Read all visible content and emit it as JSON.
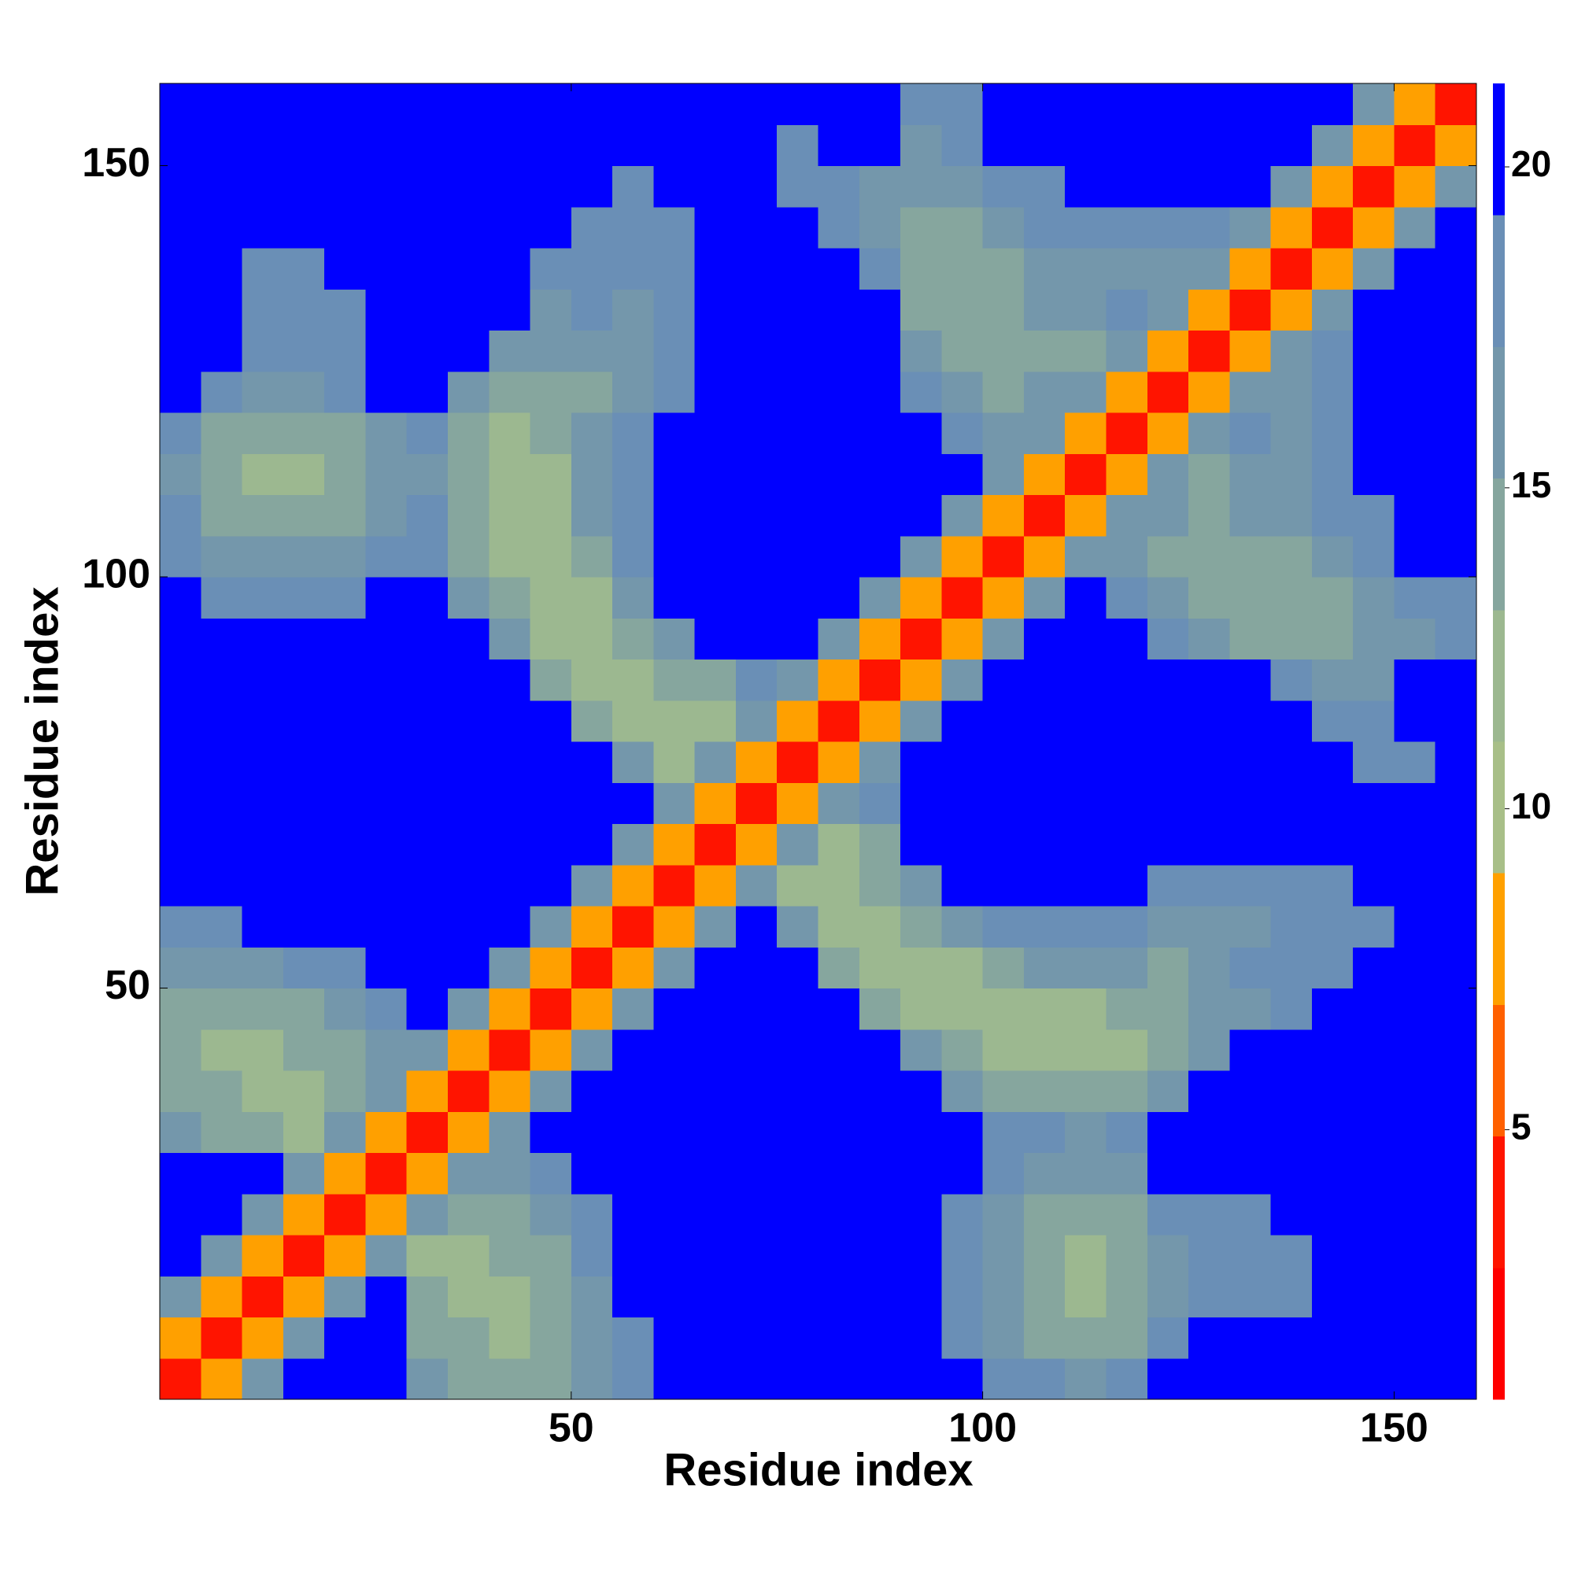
{
  "chart_data": {
    "type": "heatmap",
    "xlabel": "Residue index",
    "ylabel": "Residue index",
    "xlim": [
      0,
      160
    ],
    "ylim": [
      0,
      160
    ],
    "xticks": [
      50,
      100,
      150
    ],
    "yticks": [
      50,
      100,
      150
    ],
    "xbins": [
      0,
      5,
      10,
      15,
      20,
      25,
      30,
      35,
      40,
      45,
      50,
      55,
      60,
      65,
      70,
      75,
      80,
      85,
      90,
      95,
      100,
      105,
      110,
      115,
      120,
      125,
      130,
      135,
      140,
      145,
      150,
      155,
      160
    ],
    "ybins": [
      0,
      5,
      10,
      15,
      20,
      25,
      30,
      35,
      40,
      45,
      50,
      55,
      60,
      65,
      70,
      75,
      80,
      85,
      90,
      95,
      100,
      105,
      110,
      115,
      120,
      125,
      130,
      135,
      140,
      145,
      150,
      155,
      160
    ],
    "clim": [
      0.8,
      21.3
    ],
    "cticks": [
      5,
      10,
      15,
      20
    ],
    "colorscale": [
      "#ff0000",
      "#ff1400",
      "#ff6000",
      "#ffa000",
      "#a8bf88",
      "#9cb890",
      "#86a69e",
      "#7497ab",
      "#6a8fb6",
      "#0000ff"
    ],
    "z": [
      [
        3,
        9,
        16,
        21,
        21,
        21,
        17,
        15,
        14,
        15,
        17,
        19,
        21,
        21,
        21,
        21,
        21,
        21,
        21,
        21,
        19,
        18,
        17,
        19,
        21,
        21,
        21,
        21,
        21,
        21,
        21,
        21
      ],
      [
        9,
        3,
        9,
        16,
        21,
        21,
        15,
        14,
        13,
        14,
        16,
        19,
        21,
        21,
        21,
        21,
        21,
        21,
        21,
        19,
        17,
        15,
        14,
        15,
        18,
        21,
        21,
        21,
        21,
        21,
        21,
        21
      ],
      [
        16,
        9,
        3,
        9,
        16,
        21,
        14,
        13,
        13,
        14,
        17,
        20,
        21,
        21,
        21,
        21,
        21,
        21,
        20,
        18,
        16,
        14,
        13,
        14,
        17,
        19,
        18,
        19,
        20,
        21,
        21,
        21
      ],
      [
        21,
        16,
        9,
        3,
        9,
        16,
        13,
        13,
        14,
        15,
        18,
        20,
        21,
        21,
        21,
        21,
        21,
        21,
        20,
        18,
        16,
        14,
        13,
        14,
        17,
        18,
        18,
        19,
        20,
        21,
        21,
        21
      ],
      [
        21,
        21,
        16,
        9,
        3,
        9,
        16,
        14,
        15,
        17,
        19,
        21,
        21,
        21,
        21,
        21,
        21,
        21,
        21,
        19,
        17,
        15,
        14,
        15,
        18,
        19,
        19,
        20,
        21,
        21,
        21,
        21
      ],
      [
        21,
        21,
        21,
        16,
        9,
        3,
        9,
        16,
        16,
        19,
        21,
        21,
        21,
        21,
        21,
        21,
        21,
        21,
        21,
        21,
        19,
        17,
        16,
        17,
        21,
        21,
        21,
        21,
        21,
        21,
        21,
        21
      ],
      [
        17,
        15,
        14,
        13,
        16,
        9,
        3,
        9,
        16,
        21,
        21,
        21,
        21,
        21,
        21,
        21,
        21,
        21,
        21,
        21,
        19,
        19,
        17,
        18,
        21,
        21,
        21,
        21,
        21,
        21,
        21,
        21
      ],
      [
        15,
        14,
        13,
        13,
        14,
        16,
        9,
        3,
        9,
        16,
        21,
        21,
        21,
        21,
        21,
        21,
        21,
        21,
        21,
        17,
        15,
        14,
        14,
        15,
        17,
        21,
        21,
        21,
        21,
        21,
        21,
        21
      ],
      [
        14,
        13,
        13,
        14,
        15,
        16,
        16,
        9,
        3,
        9,
        16,
        21,
        21,
        21,
        21,
        21,
        21,
        21,
        16,
        14,
        13,
        12,
        12,
        13,
        14,
        16,
        21,
        21,
        21,
        21,
        21,
        21
      ],
      [
        15,
        14,
        14,
        15,
        17,
        19,
        21,
        16,
        9,
        3,
        9,
        16,
        21,
        21,
        21,
        21,
        21,
        15,
        13,
        12,
        12,
        13,
        13,
        14,
        15,
        16,
        17,
        18,
        21,
        21,
        21,
        21
      ],
      [
        17,
        16,
        17,
        18,
        19,
        21,
        21,
        21,
        16,
        9,
        3,
        9,
        16,
        21,
        21,
        21,
        15,
        12,
        12,
        13,
        15,
        16,
        16,
        17,
        15,
        16,
        18,
        18,
        19,
        20,
        21,
        21
      ],
      [
        19,
        19,
        20,
        20,
        21,
        21,
        21,
        21,
        21,
        16,
        9,
        3,
        9,
        16,
        21,
        16,
        12,
        12,
        14,
        16,
        19,
        19,
        19,
        19,
        16,
        17,
        17,
        18,
        19,
        19,
        20,
        21
      ],
      [
        21,
        21,
        21,
        21,
        21,
        21,
        21,
        21,
        21,
        21,
        16,
        9,
        3,
        9,
        16,
        13,
        13,
        14,
        17,
        21,
        21,
        21,
        21,
        21,
        18,
        18,
        19,
        18,
        19,
        20,
        21,
        21
      ],
      [
        21,
        21,
        21,
        21,
        21,
        21,
        21,
        21,
        21,
        21,
        21,
        16,
        9,
        3,
        9,
        16,
        12,
        15,
        21,
        21,
        21,
        21,
        21,
        21,
        21,
        21,
        21,
        21,
        21,
        21,
        21,
        21
      ],
      [
        21,
        21,
        21,
        21,
        21,
        21,
        21,
        21,
        21,
        21,
        21,
        21,
        16,
        9,
        3,
        9,
        16,
        18,
        21,
        21,
        21,
        21,
        21,
        21,
        21,
        21,
        21,
        21,
        21,
        21,
        21,
        21
      ],
      [
        21,
        21,
        21,
        21,
        21,
        21,
        21,
        21,
        21,
        21,
        21,
        16,
        13,
        16,
        9,
        3,
        9,
        16,
        21,
        21,
        21,
        21,
        21,
        21,
        21,
        21,
        21,
        21,
        21,
        19,
        19,
        21
      ],
      [
        21,
        21,
        21,
        21,
        21,
        21,
        21,
        21,
        21,
        21,
        15,
        12,
        13,
        12,
        16,
        9,
        3,
        9,
        16,
        21,
        21,
        21,
        21,
        21,
        21,
        21,
        21,
        21,
        19,
        18,
        20,
        21
      ],
      [
        21,
        21,
        21,
        21,
        21,
        21,
        21,
        21,
        21,
        15,
        12,
        12,
        14,
        15,
        18,
        16,
        9,
        3,
        9,
        16,
        21,
        21,
        21,
        21,
        21,
        21,
        21,
        18,
        17,
        17,
        20,
        21
      ],
      [
        21,
        21,
        20,
        20,
        21,
        21,
        21,
        21,
        16,
        13,
        12,
        14,
        17,
        21,
        21,
        21,
        16,
        9,
        3,
        9,
        16,
        21,
        21,
        21,
        18,
        16,
        15,
        14,
        15,
        16,
        17,
        19
      ],
      [
        21,
        19,
        18,
        18,
        19,
        21,
        21,
        17,
        14,
        12,
        13,
        16,
        21,
        21,
        21,
        21,
        21,
        16,
        9,
        3,
        9,
        16,
        21,
        19,
        16,
        15,
        14,
        14,
        15,
        17,
        18,
        19
      ],
      [
        19,
        17,
        16,
        16,
        17,
        19,
        19,
        15,
        13,
        12,
        15,
        19,
        21,
        21,
        21,
        21,
        21,
        21,
        16,
        9,
        3,
        9,
        16,
        17,
        15,
        15,
        15,
        15,
        17,
        19,
        20,
        21
      ],
      [
        18,
        15,
        14,
        14,
        15,
        17,
        19,
        14,
        12,
        13,
        16,
        19,
        21,
        21,
        21,
        21,
        21,
        21,
        21,
        16,
        9,
        3,
        9,
        16,
        16,
        14,
        16,
        16,
        18,
        19,
        21,
        21
      ],
      [
        17,
        14,
        13,
        13,
        14,
        16,
        17,
        14,
        12,
        13,
        16,
        19,
        21,
        21,
        21,
        21,
        21,
        21,
        21,
        21,
        16,
        9,
        3,
        9,
        16,
        14,
        17,
        17,
        18,
        20,
        21,
        21
      ],
      [
        19,
        15,
        14,
        14,
        15,
        17,
        18,
        15,
        13,
        14,
        17,
        19,
        21,
        21,
        21,
        21,
        21,
        21,
        21,
        19,
        17,
        16,
        9,
        3,
        9,
        16,
        18,
        17,
        18,
        21,
        21,
        21
      ],
      [
        21,
        18,
        17,
        17,
        18,
        21,
        21,
        17,
        14,
        15,
        15,
        16,
        18,
        21,
        21,
        21,
        21,
        21,
        18,
        16,
        15,
        16,
        16,
        9,
        3,
        9,
        16,
        17,
        19,
        21,
        21,
        21
      ],
      [
        21,
        21,
        19,
        18,
        19,
        21,
        21,
        21,
        16,
        16,
        16,
        17,
        18,
        21,
        21,
        21,
        21,
        21,
        16,
        15,
        15,
        14,
        14,
        16,
        9,
        3,
        9,
        16,
        19,
        21,
        21,
        21
      ],
      [
        21,
        21,
        18,
        18,
        19,
        21,
        21,
        21,
        21,
        17,
        18,
        17,
        19,
        21,
        21,
        21,
        21,
        21,
        15,
        14,
        15,
        16,
        17,
        18,
        16,
        9,
        3,
        9,
        16,
        21,
        21,
        21
      ],
      [
        21,
        21,
        19,
        19,
        20,
        21,
        21,
        21,
        21,
        18,
        18,
        18,
        18,
        21,
        21,
        21,
        21,
        18,
        14,
        14,
        15,
        16,
        17,
        17,
        17,
        16,
        9,
        3,
        9,
        16,
        21,
        21
      ],
      [
        21,
        21,
        20,
        20,
        21,
        21,
        21,
        21,
        21,
        21,
        19,
        19,
        19,
        21,
        21,
        21,
        19,
        17,
        15,
        15,
        17,
        18,
        18,
        18,
        19,
        19,
        16,
        9,
        3,
        9,
        16,
        21
      ],
      [
        21,
        21,
        21,
        21,
        21,
        21,
        21,
        21,
        21,
        21,
        20,
        19,
        20,
        21,
        21,
        19,
        18,
        17,
        16,
        17,
        19,
        19,
        20,
        21,
        21,
        21,
        21,
        16,
        9,
        3,
        9,
        16
      ],
      [
        21,
        21,
        21,
        21,
        21,
        21,
        21,
        21,
        21,
        21,
        21,
        20,
        21,
        21,
        21,
        19,
        20,
        20,
        17,
        18,
        20,
        21,
        21,
        21,
        21,
        21,
        21,
        21,
        16,
        9,
        3,
        9
      ],
      [
        21,
        21,
        21,
        21,
        21,
        21,
        21,
        21,
        21,
        21,
        21,
        21,
        21,
        21,
        21,
        21,
        21,
        21,
        19,
        19,
        21,
        21,
        21,
        21,
        21,
        21,
        21,
        21,
        21,
        16,
        9,
        3
      ]
    ]
  }
}
